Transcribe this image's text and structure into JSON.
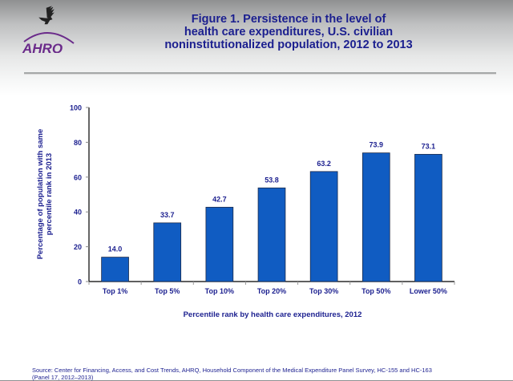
{
  "header": {
    "logo_text": "AHRQ",
    "logo_icon": "hhs-eagle-icon",
    "title_lines": [
      "Figure 1. Persistence in the level of",
      "health care expenditures, U.S. civilian",
      "noninstitutionalized population, 2012 to 2013"
    ]
  },
  "colors": {
    "bar": "#105cc2",
    "text": "#1b1f8f",
    "logo": "#6a2a8a"
  },
  "chart_data": {
    "type": "bar",
    "title": "Figure 1. Persistence in the level of health care expenditures, U.S. civilian noninstitutionalized population, 2012 to 2013",
    "categories": [
      "Top 1%",
      "Top 5%",
      "Top 10%",
      "Top 20%",
      "Top 30%",
      "Top 50%",
      "Lower 50%"
    ],
    "values": [
      14.0,
      33.7,
      42.7,
      53.8,
      63.2,
      73.9,
      73.1
    ],
    "data_labels": [
      "14.0",
      "33.7",
      "42.7",
      "53.8",
      "63.2",
      "73.9",
      "73.1"
    ],
    "xlabel": "Percentile rank by health care expenditures, 2012",
    "ylabel_lines": [
      "Percentage of population with same",
      "percentile rank in 2013"
    ],
    "ylim": [
      0,
      100
    ],
    "yticks": [
      0,
      20,
      40,
      60,
      80,
      100
    ],
    "grid": false,
    "legend": "none"
  },
  "footer": {
    "source_lines": [
      "Source: Center for Financing, Access, and Cost Trends, AHRQ, Household Component of the Medical Expenditure Panel Survey, HC-155 and HC-163",
      "(Panel 17, 2012–2013)"
    ]
  }
}
